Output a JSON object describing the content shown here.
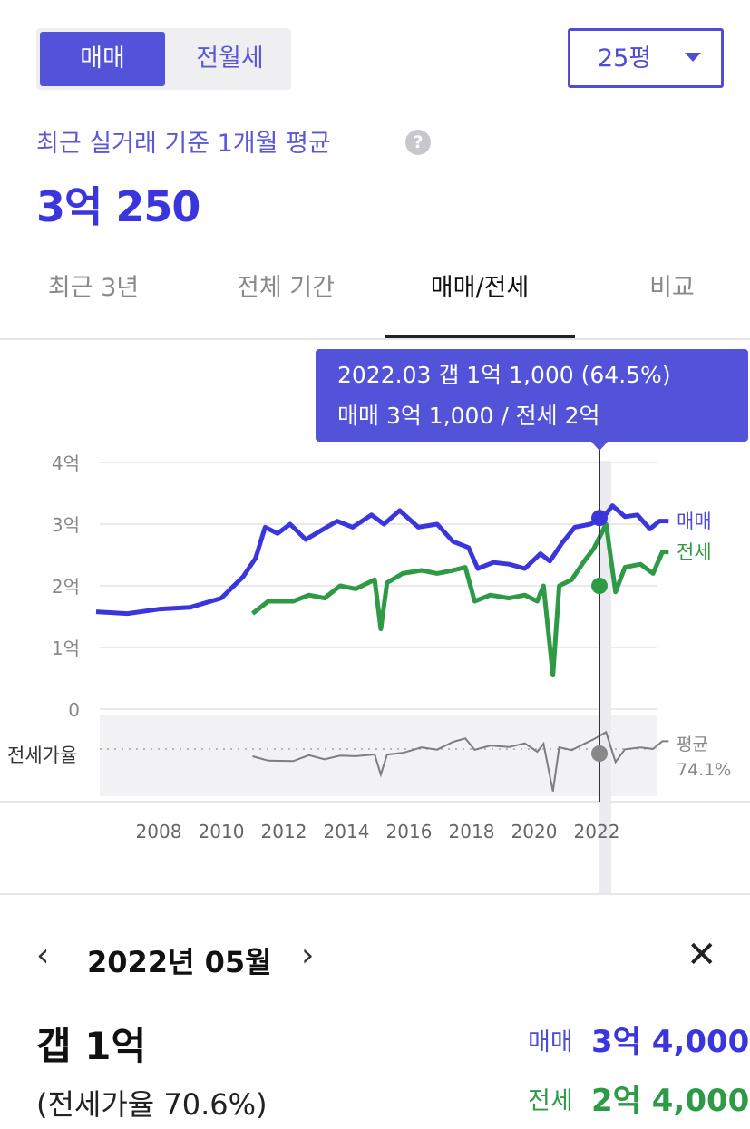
{
  "deal_toggle": {
    "sale": "매매",
    "rent": "전월세"
  },
  "area_select": {
    "value": "25평"
  },
  "summary": {
    "label": "최근 실거래 기준 1개월 평균",
    "help": "?",
    "value": "3억 250"
  },
  "tabs": [
    {
      "label": "최근 3년",
      "active": false
    },
    {
      "label": "전체 기간",
      "active": false
    },
    {
      "label": "매매/전세",
      "active": true
    },
    {
      "label": "비교",
      "active": false
    }
  ],
  "chart_data": {
    "type": "line",
    "x_ticks": [
      "2008",
      "2010",
      "2012",
      "2014",
      "2016",
      "2018",
      "2020",
      "2022"
    ],
    "y_ticks": [
      "4억",
      "3억",
      "2억",
      "1억",
      "0"
    ],
    "ylim_eok": [
      0,
      4
    ],
    "grid": true,
    "series": [
      {
        "name": "매매",
        "color": "#3a35dc",
        "points": [
          [
            2006.0,
            1.58
          ],
          [
            2007.0,
            1.55
          ],
          [
            2008.0,
            1.62
          ],
          [
            2009.0,
            1.65
          ],
          [
            2010.0,
            1.8
          ],
          [
            2010.7,
            2.15
          ],
          [
            2011.1,
            2.45
          ],
          [
            2011.4,
            2.95
          ],
          [
            2011.8,
            2.85
          ],
          [
            2012.2,
            3.0
          ],
          [
            2012.7,
            2.75
          ],
          [
            2013.2,
            2.9
          ],
          [
            2013.7,
            3.05
          ],
          [
            2014.2,
            2.95
          ],
          [
            2014.8,
            3.15
          ],
          [
            2015.2,
            3.0
          ],
          [
            2015.7,
            3.22
          ],
          [
            2016.3,
            2.95
          ],
          [
            2016.9,
            3.0
          ],
          [
            2017.4,
            2.72
          ],
          [
            2017.9,
            2.62
          ],
          [
            2018.2,
            2.28
          ],
          [
            2018.7,
            2.38
          ],
          [
            2019.2,
            2.35
          ],
          [
            2019.7,
            2.28
          ],
          [
            2020.2,
            2.52
          ],
          [
            2020.5,
            2.4
          ],
          [
            2020.9,
            2.7
          ],
          [
            2021.3,
            2.95
          ],
          [
            2021.8,
            3.0
          ],
          [
            2022.2,
            3.1
          ],
          [
            2022.5,
            3.3
          ],
          [
            2022.9,
            3.12
          ],
          [
            2023.3,
            3.15
          ],
          [
            2023.7,
            2.92
          ],
          [
            2024.0,
            3.05
          ],
          [
            2024.3,
            3.05
          ]
        ]
      },
      {
        "name": "전세",
        "color": "#2f9a45",
        "points": [
          [
            2011.0,
            1.55
          ],
          [
            2011.5,
            1.75
          ],
          [
            2012.3,
            1.75
          ],
          [
            2012.8,
            1.85
          ],
          [
            2013.3,
            1.8
          ],
          [
            2013.8,
            2.0
          ],
          [
            2014.3,
            1.95
          ],
          [
            2014.9,
            2.1
          ],
          [
            2015.1,
            1.3
          ],
          [
            2015.3,
            2.05
          ],
          [
            2015.8,
            2.2
          ],
          [
            2016.4,
            2.25
          ],
          [
            2016.9,
            2.2
          ],
          [
            2017.4,
            2.25
          ],
          [
            2017.8,
            2.3
          ],
          [
            2018.1,
            1.75
          ],
          [
            2018.6,
            1.85
          ],
          [
            2019.2,
            1.8
          ],
          [
            2019.7,
            1.85
          ],
          [
            2020.1,
            1.75
          ],
          [
            2020.3,
            2.0
          ],
          [
            2020.6,
            0.55
          ],
          [
            2020.8,
            2.0
          ],
          [
            2021.2,
            2.1
          ],
          [
            2021.6,
            2.4
          ],
          [
            2021.9,
            2.6
          ],
          [
            2022.3,
            3.0
          ],
          [
            2022.6,
            1.9
          ],
          [
            2022.9,
            2.3
          ],
          [
            2023.4,
            2.35
          ],
          [
            2023.8,
            2.2
          ],
          [
            2024.1,
            2.55
          ],
          [
            2024.3,
            2.55
          ]
        ]
      }
    ],
    "ratio_series": {
      "label": "전세가율",
      "average_label": "평균",
      "average": "74.1%",
      "color": "#7d7d7d"
    },
    "series_labels": [
      "매매",
      "전세"
    ],
    "highlight": {
      "date": "2022.03",
      "line1": "2022.03  갭 1억 1,000 (64.5%)",
      "line2": "매매 3억 1,000 / 전세 2억",
      "sale_eok": 3.1,
      "rent_eok": 2.0
    }
  },
  "detail": {
    "month": "2022년 05월",
    "gap": "갭 1억",
    "ratio": "(전세가율 70.6%)",
    "sale_label": "매매",
    "sale_value": "3억 4,000",
    "rent_label": "전세",
    "rent_value": "2억 4,000"
  }
}
